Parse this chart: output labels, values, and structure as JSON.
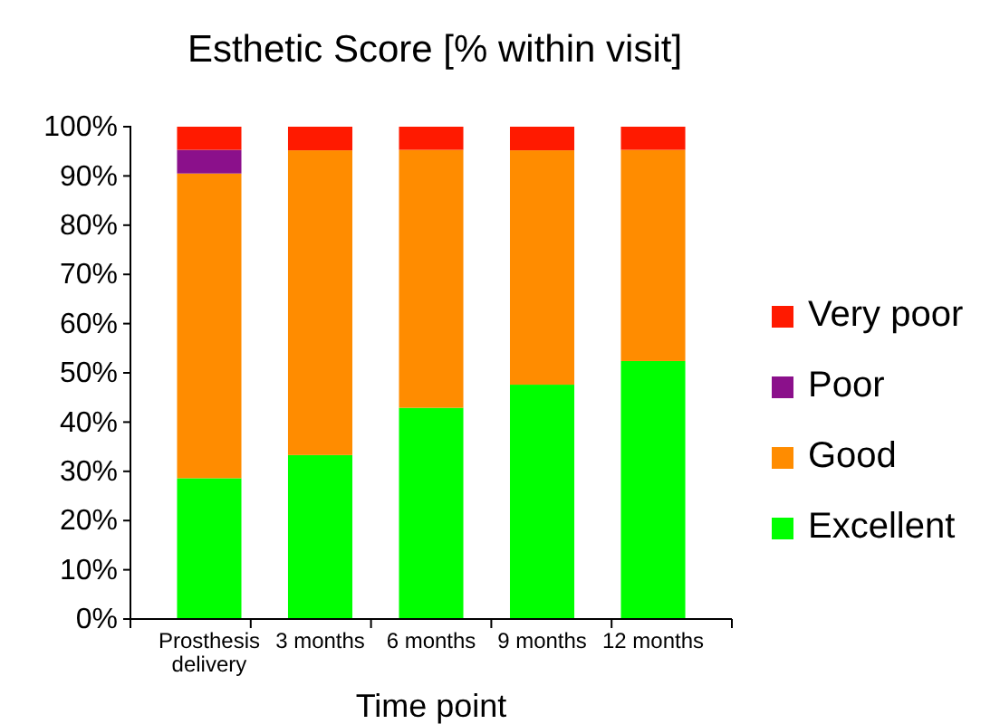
{
  "chart_data": {
    "type": "bar",
    "title": "Esthetic Score [% within visit]",
    "xlabel": "Time point",
    "categories": [
      "Prosthesis delivery",
      "3 months",
      "6 months",
      "9 months",
      "12 months"
    ],
    "stacked": true,
    "legend": "right",
    "grid": false,
    "ylim": [
      0,
      100
    ],
    "yticks": [
      {
        "value": 0,
        "label": "0%"
      },
      {
        "value": 10,
        "label": "10%"
      },
      {
        "value": 20,
        "label": "20%"
      },
      {
        "value": 30,
        "label": "30%"
      },
      {
        "value": 40,
        "label": "40%"
      },
      {
        "value": 50,
        "label": "50%"
      },
      {
        "value": 60,
        "label": "60%"
      },
      {
        "value": 70,
        "label": "70%"
      },
      {
        "value": 80,
        "label": "80%"
      },
      {
        "value": 90,
        "label": "90%"
      },
      {
        "value": 100,
        "label": "100%"
      }
    ],
    "series": [
      {
        "name": "Excellent",
        "color": "#00ff00",
        "values": [
          28.6,
          33.3,
          42.9,
          47.6,
          52.4
        ]
      },
      {
        "name": "Good",
        "color": "#ff8c00",
        "values": [
          61.9,
          61.9,
          52.4,
          47.6,
          42.9
        ]
      },
      {
        "name": "Poor",
        "color": "#8b108b",
        "values": [
          4.8,
          0,
          0,
          0,
          0
        ]
      },
      {
        "name": "Very poor",
        "color": "#ff1a00",
        "values": [
          4.7,
          4.8,
          4.7,
          4.8,
          4.7
        ]
      }
    ]
  }
}
